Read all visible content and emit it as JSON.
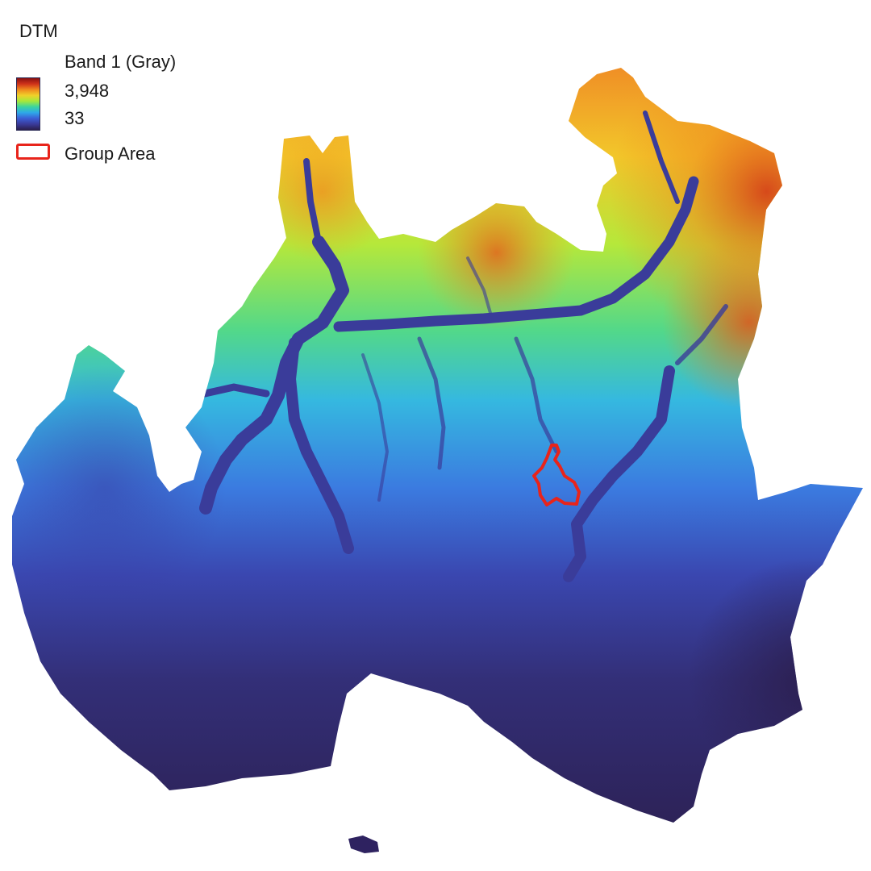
{
  "legend": {
    "layer_title": "DTM",
    "band_label": "Band 1 (Gray)",
    "ramp_max": "3,948",
    "ramp_min": "33",
    "group_area_label": "Group Area"
  },
  "colors": {
    "ramp": [
      "#2b1e4d",
      "#3a3a9a",
      "#3b5fd6",
      "#2fa8e8",
      "#3ad4a0",
      "#a6e83a",
      "#f0d12a",
      "#f08a1e",
      "#d0331a",
      "#8a1010"
    ],
    "group_area_outline": "#e8241b",
    "background": "#ffffff"
  },
  "map": {
    "elevation_min": 33,
    "elevation_max": 3948
  }
}
